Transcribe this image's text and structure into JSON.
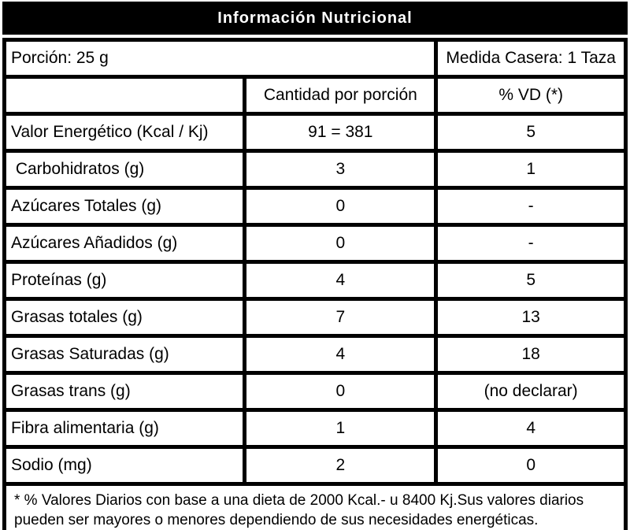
{
  "title": "Información Nutricional",
  "serving": {
    "portion": "Porción: 25 g",
    "household_measure": "Medida Casera: 1 Taza"
  },
  "columns": {
    "amount": "Cantidad por porción",
    "daily_value": "% VD (*)"
  },
  "rows": [
    {
      "label": "Valor Energético (Kcal / Kj)",
      "amount": "91 = 381",
      "dv": "5"
    },
    {
      "label": " Carbohidratos (g)",
      "amount": "3",
      "dv": "1"
    },
    {
      "label": "Azúcares Totales (g)",
      "amount": "0",
      "dv": "-"
    },
    {
      "label": "Azúcares Añadidos (g)",
      "amount": "0",
      "dv": "-"
    },
    {
      "label": "Proteínas (g)",
      "amount": "4",
      "dv": "5"
    },
    {
      "label": "Grasas totales (g)",
      "amount": "7",
      "dv": "13"
    },
    {
      "label": "Grasas Saturadas (g)",
      "amount": "4",
      "dv": "18"
    },
    {
      "label": "Grasas trans (g)",
      "amount": "0",
      "dv": "(no declarar)"
    },
    {
      "label": "Fibra alimentaria (g)",
      "amount": "1",
      "dv": "4"
    },
    {
      "label": "Sodio (mg)",
      "amount": "2",
      "dv": "0"
    }
  ],
  "footnote": "* % Valores Diarios con base a una dieta de 2000 Kcal.- u 8400 Kj.Sus valores diarios pueden ser mayores o menores dependiendo de sus necesidades energéticas.",
  "colors": {
    "border": "#000000",
    "background": "#ffffff",
    "title_background": "#000000",
    "title_text": "#ffffff",
    "body_text": "#000000"
  }
}
